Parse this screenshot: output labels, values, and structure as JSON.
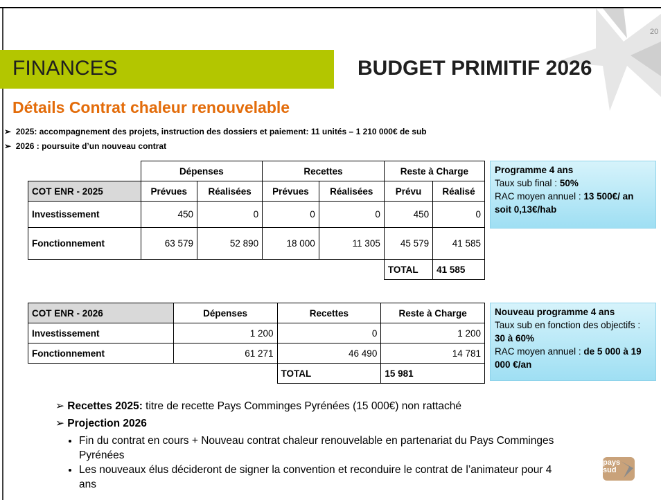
{
  "page_number": "20",
  "section": "FINANCES",
  "title": "BUDGET PRIMITIF 2026",
  "subtitle": "Détails Contrat chaleur renouvelable",
  "bullets": [
    "2025: accompagnement des projets, instruction des dossiers et paiement: 11 unités – 1 210 000€ de sub",
    "2026 : poursuite d’un nouveau contrat"
  ],
  "table_2025": {
    "header_groups": [
      "Dépenses",
      "Recettes",
      "Reste à Charge"
    ],
    "corner": "COT ENR - 2025",
    "sub_headers": [
      "Prévues",
      "Réalisées",
      "Prévues",
      "Réalisées",
      "Prévu",
      "Réalisé"
    ],
    "rows": [
      [
        "Investissement",
        "450",
        "0",
        "0",
        "0",
        "450",
        "0"
      ],
      [
        "Fonctionnement",
        "63 579",
        "52 890",
        "18 000",
        "11 305",
        "45 579",
        "41 585"
      ]
    ],
    "total": [
      "TOTAL",
      "41 585"
    ]
  },
  "table_2026": {
    "header": [
      "COT ENR -  2026",
      "Dépenses",
      "Recettes",
      "Reste à Charge"
    ],
    "rows": [
      [
        "Investissement",
        "1 200",
        "0",
        "1 200"
      ],
      [
        "Fonctionnement",
        "61 271",
        "46 490",
        "14 781"
      ]
    ],
    "total": [
      "TOTAL",
      "15 981"
    ]
  },
  "box_2025": {
    "title": "Programme 4 ans",
    "lines": [
      [
        {
          "text": "Taux sub final : "
        },
        {
          "text": "50%",
          "bold": true
        }
      ],
      [
        {
          "text": "RAC moyen annuel : "
        },
        {
          "text": "13 500€/ an soit 0,13€/hab",
          "bold": true
        }
      ]
    ]
  },
  "box_2026": {
    "title": "Nouveau programme 4 ans",
    "lines": [
      [
        {
          "text": "Taux sub en fonction des objectifs : "
        },
        {
          "text": "30 à 60%",
          "bold": true
        }
      ],
      [
        {
          "text": "RAC moyen annuel : "
        },
        {
          "text": "de 5 000 à 19 000 €/an",
          "bold": true
        }
      ]
    ]
  },
  "notes": [
    {
      "lead": "Recettes 2025:",
      "text": " titre de recette Pays Comminges Pyrénées (15 000€) non rattaché"
    },
    {
      "lead": "Projection 2026",
      "items": [
        "Fin du contrat en cours + Nouveau contrat chaleur renouvelable en partenariat du Pays Comminges Pyrénées",
        "Les  nouveaux élus décideront de signer la convention et reconduire le contrat de l’animateur pour 4 ans"
      ]
    }
  ],
  "logo": [
    "pays",
    "sud"
  ]
}
